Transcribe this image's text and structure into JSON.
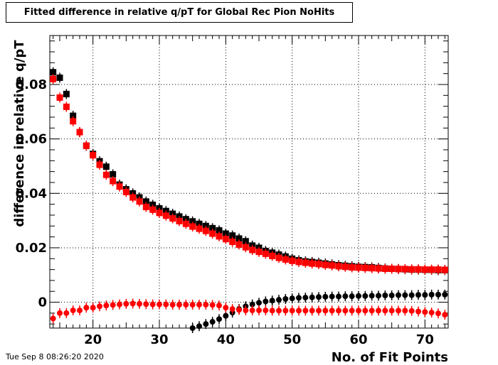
{
  "chart_data": {
    "type": "scatter",
    "title": "Fitted difference in relative q/pT for Global Rec Pion NoHits",
    "xlabel": "No. of Fit Points",
    "ylabel": "difference in relative q/pT",
    "xlim": [
      13.5,
      73.5
    ],
    "ylim": [
      -0.0095,
      0.098
    ],
    "xticks": [
      20,
      30,
      40,
      50,
      60,
      70
    ],
    "yticks": [
      0,
      0.02,
      0.04,
      0.06,
      0.08
    ],
    "ytick_labels": [
      "0",
      "0.02",
      "0.04",
      "0.06",
      "0.08"
    ],
    "grid": true,
    "series": [
      {
        "color": "#000000",
        "marker": "square",
        "x": [
          14,
          15,
          16,
          17,
          18,
          19,
          20,
          21,
          22,
          23,
          24,
          25,
          26,
          27,
          28,
          29,
          30,
          31,
          32,
          33,
          34,
          35,
          36,
          37,
          38,
          39,
          40,
          41,
          42,
          43,
          44,
          45,
          46,
          47,
          48,
          49,
          50,
          51,
          52,
          53,
          54,
          55,
          56,
          57,
          58,
          59,
          60,
          61,
          62,
          63,
          64,
          65,
          66,
          67,
          68,
          69,
          70,
          71,
          72,
          73
        ],
        "values": [
          0.0845,
          0.0825,
          0.0765,
          0.0685,
          0.0625,
          0.0575,
          0.0545,
          0.0518,
          0.0498,
          0.047,
          0.0432,
          0.0415,
          0.04,
          0.0385,
          0.037,
          0.0358,
          0.0345,
          0.0335,
          0.0325,
          0.0315,
          0.0305,
          0.0297,
          0.0288,
          0.028,
          0.0272,
          0.0264,
          0.0252,
          0.0245,
          0.0234,
          0.0224,
          0.0208,
          0.02,
          0.0188,
          0.0182,
          0.0175,
          0.0168,
          0.016,
          0.0154,
          0.015,
          0.0148,
          0.0145,
          0.0142,
          0.0139,
          0.0136,
          0.0134,
          0.0132,
          0.013,
          0.0129,
          0.0128,
          0.0126,
          0.0124,
          0.0123,
          0.0122,
          0.0121,
          0.012,
          0.012,
          0.0119,
          0.0119,
          0.0118,
          0.0118
        ]
      },
      {
        "color": "#ff0000",
        "marker": "square",
        "x": [
          14,
          15,
          16,
          17,
          18,
          19,
          20,
          21,
          22,
          23,
          24,
          25,
          26,
          27,
          28,
          29,
          30,
          31,
          32,
          33,
          34,
          35,
          36,
          37,
          38,
          39,
          40,
          41,
          42,
          43,
          44,
          45,
          46,
          47,
          48,
          49,
          50,
          51,
          52,
          53,
          54,
          55,
          56,
          57,
          58,
          59,
          60,
          61,
          62,
          63,
          64,
          65,
          66,
          67,
          68,
          69,
          70,
          71,
          72,
          73
        ],
        "values": [
          0.082,
          0.0752,
          0.0718,
          0.0665,
          0.0625,
          0.0575,
          0.054,
          0.0505,
          0.0468,
          0.0445,
          0.0425,
          0.0405,
          0.0385,
          0.037,
          0.035,
          0.034,
          0.0328,
          0.0318,
          0.0308,
          0.0298,
          0.0288,
          0.0278,
          0.027,
          0.0262,
          0.0252,
          0.0242,
          0.0232,
          0.0222,
          0.0212,
          0.0202,
          0.0192,
          0.0185,
          0.0178,
          0.017,
          0.0163,
          0.0157,
          0.0152,
          0.0148,
          0.0145,
          0.0142,
          0.014,
          0.0137,
          0.0135,
          0.0132,
          0.013,
          0.0128,
          0.0127,
          0.0126,
          0.0125,
          0.0124,
          0.0123,
          0.0123,
          0.0122,
          0.0122,
          0.0121,
          0.0121,
          0.012,
          0.012,
          0.012,
          0.0119
        ]
      },
      {
        "color": "#000000",
        "marker": "circle",
        "x": [
          35,
          36,
          37,
          38,
          39,
          40,
          41,
          42,
          43,
          44,
          45,
          46,
          47,
          48,
          49,
          50,
          51,
          52,
          53,
          54,
          55,
          56,
          57,
          58,
          59,
          60,
          61,
          62,
          63,
          64,
          65,
          66,
          67,
          68,
          69,
          70,
          71,
          72,
          73
        ],
        "values": [
          -0.0095,
          -0.0088,
          -0.008,
          -0.0072,
          -0.0062,
          -0.005,
          -0.0038,
          -0.0025,
          -0.0015,
          -0.0008,
          -0.0002,
          0.0003,
          0.0006,
          0.0009,
          0.0012,
          0.0014,
          0.0016,
          0.0017,
          0.0018,
          0.0019,
          0.002,
          0.0021,
          0.0021,
          0.0022,
          0.0022,
          0.0023,
          0.0023,
          0.0024,
          0.0024,
          0.0025,
          0.0025,
          0.0026,
          0.0026,
          0.0026,
          0.0027,
          0.0027,
          0.0028,
          0.0028,
          0.0028
        ]
      },
      {
        "color": "#ff0000",
        "marker": "circle",
        "x": [
          14,
          15,
          16,
          17,
          18,
          19,
          20,
          21,
          22,
          23,
          24,
          25,
          26,
          27,
          28,
          29,
          30,
          31,
          32,
          33,
          34,
          35,
          36,
          37,
          38,
          39,
          40,
          41,
          42,
          43,
          44,
          45,
          46,
          47,
          48,
          49,
          50,
          51,
          52,
          53,
          54,
          55,
          56,
          57,
          58,
          59,
          60,
          61,
          62,
          63,
          64,
          65,
          66,
          67,
          68,
          69,
          70,
          71,
          72,
          73
        ],
        "values": [
          -0.006,
          -0.004,
          -0.004,
          -0.003,
          -0.003,
          -0.002,
          -0.002,
          -0.0015,
          -0.0012,
          -0.001,
          -0.0008,
          -0.0006,
          -0.0005,
          -0.0006,
          -0.0007,
          -0.0008,
          -0.0008,
          -0.0008,
          -0.0009,
          -0.0009,
          -0.0009,
          -0.0009,
          -0.0009,
          -0.0009,
          -0.001,
          -0.0012,
          -0.002,
          -0.0025,
          -0.0028,
          -0.003,
          -0.003,
          -0.003,
          -0.003,
          -0.0031,
          -0.0031,
          -0.0031,
          -0.0031,
          -0.0031,
          -0.0031,
          -0.0031,
          -0.0031,
          -0.0031,
          -0.0031,
          -0.0031,
          -0.0031,
          -0.0031,
          -0.0031,
          -0.0031,
          -0.0031,
          -0.0031,
          -0.0031,
          -0.0031,
          -0.0031,
          -0.0031,
          -0.0032,
          -0.0034,
          -0.0036,
          -0.0038,
          -0.0041,
          -0.0046
        ]
      }
    ]
  },
  "footer": {
    "date": "Tue Sep  8 08:26:20 2020"
  }
}
